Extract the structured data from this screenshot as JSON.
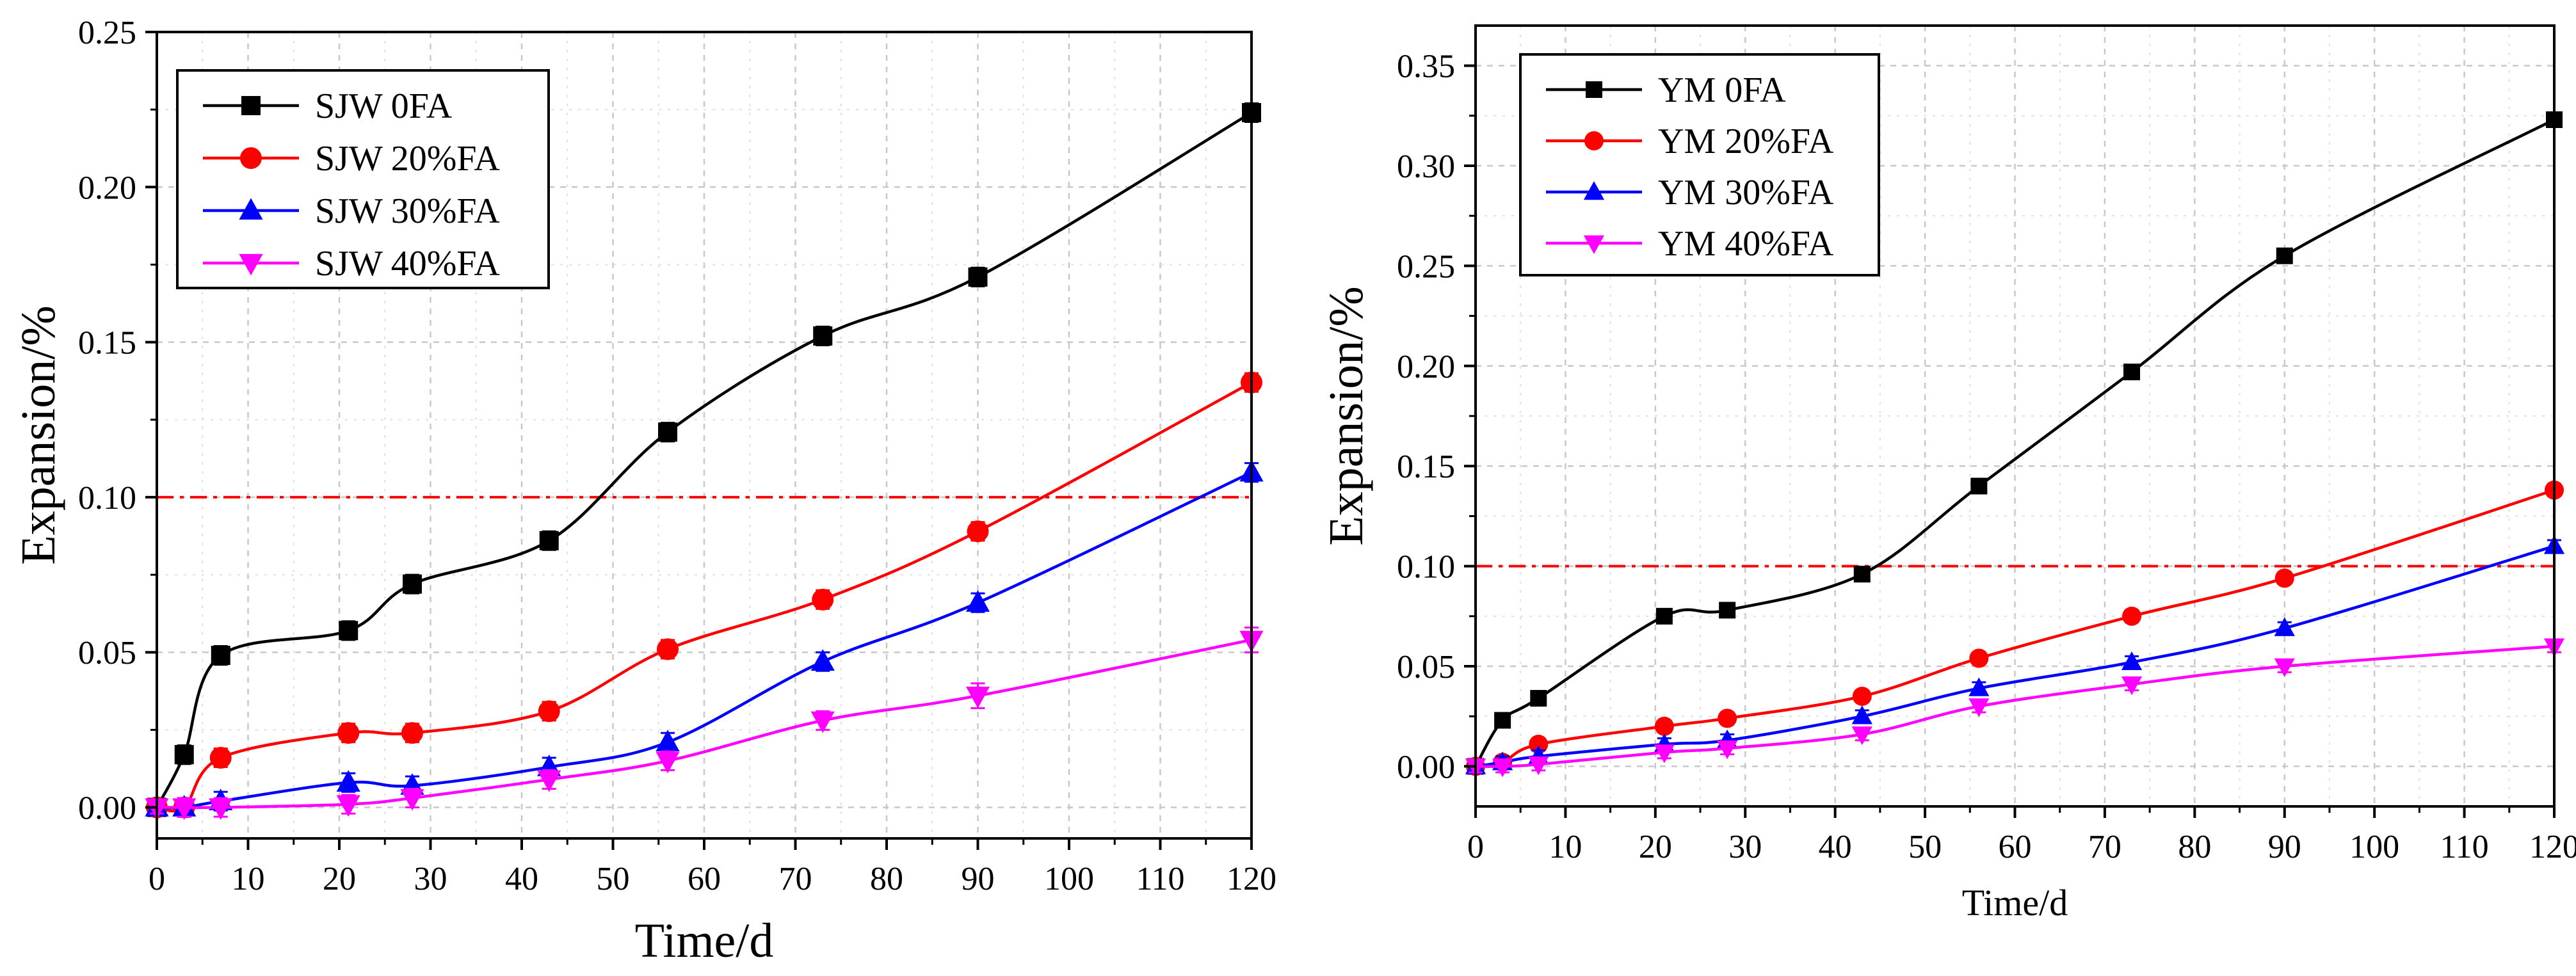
{
  "chart_data": [
    {
      "type": "line",
      "xlabel": "Time/d",
      "ylabel": "Expansion/%",
      "xlim": [
        0,
        120
      ],
      "ylim": [
        -0.01,
        0.25
      ],
      "xticks": [
        0,
        10,
        20,
        30,
        40,
        50,
        60,
        70,
        80,
        90,
        100,
        110,
        120
      ],
      "yticks": [
        "0.00",
        "0.05",
        "0.10",
        "0.15",
        "0.20",
        "0.25"
      ],
      "grid": true,
      "legend_position": "top-left",
      "threshold": 0.1,
      "series": [
        {
          "name": "SJW 0FA",
          "color": "#000000",
          "marker": "square",
          "x": [
            0,
            3,
            7,
            21,
            28,
            43,
            56,
            73,
            90,
            120
          ],
          "y": [
            0.0,
            0.017,
            0.049,
            0.057,
            0.072,
            0.086,
            0.121,
            0.152,
            0.171,
            0.224
          ],
          "err": [
            0.002,
            0.003,
            0.003,
            0.003,
            0.003,
            0.003,
            0.003,
            0.003,
            0.003,
            0.003
          ]
        },
        {
          "name": "SJW 20%FA",
          "color": "#ff0000",
          "marker": "circle",
          "x": [
            0,
            3,
            7,
            21,
            28,
            43,
            56,
            73,
            90,
            120
          ],
          "y": [
            0.0,
            0.0,
            0.016,
            0.024,
            0.024,
            0.031,
            0.051,
            0.067,
            0.089,
            0.137
          ],
          "err": [
            0.002,
            0.003,
            0.003,
            0.003,
            0.003,
            0.003,
            0.003,
            0.003,
            0.003,
            0.003
          ]
        },
        {
          "name": "SJW 30%FA",
          "color": "#0000ff",
          "marker": "triangle-up",
          "x": [
            0,
            3,
            7,
            21,
            28,
            43,
            56,
            73,
            90,
            120
          ],
          "y": [
            0.0,
            0.0,
            0.002,
            0.008,
            0.007,
            0.013,
            0.021,
            0.047,
            0.066,
            0.108
          ],
          "err": [
            0.002,
            0.003,
            0.003,
            0.003,
            0.003,
            0.003,
            0.003,
            0.003,
            0.003,
            0.003
          ]
        },
        {
          "name": "SJW 40%FA",
          "color": "#ff00ff",
          "marker": "triangle-down",
          "x": [
            0,
            3,
            7,
            21,
            28,
            43,
            56,
            73,
            90,
            120
          ],
          "y": [
            0.0,
            0.0,
            0.0,
            0.001,
            0.003,
            0.009,
            0.015,
            0.028,
            0.036,
            0.054
          ],
          "err": [
            0.002,
            0.003,
            0.003,
            0.003,
            0.003,
            0.003,
            0.003,
            0.003,
            0.004,
            0.004
          ]
        }
      ]
    },
    {
      "type": "line",
      "xlabel": "Time/d",
      "ylabel": "Expansion/%",
      "xlim": [
        0,
        120
      ],
      "ylim": [
        -0.02,
        0.37
      ],
      "xticks": [
        0,
        10,
        20,
        30,
        40,
        50,
        60,
        70,
        80,
        90,
        100,
        110,
        120
      ],
      "yticks": [
        "0.00",
        "0.05",
        "0.10",
        "0.15",
        "0.20",
        "0.25",
        "0.30",
        "0.35"
      ],
      "grid": true,
      "legend_position": "top-left",
      "threshold": 0.1,
      "series": [
        {
          "name": "YM 0FA",
          "color": "#000000",
          "marker": "square",
          "x": [
            0,
            3,
            7,
            21,
            28,
            43,
            56,
            73,
            90,
            120
          ],
          "y": [
            0.0,
            0.023,
            0.034,
            0.075,
            0.078,
            0.096,
            0.14,
            0.197,
            0.255,
            0.323
          ],
          "err": [
            0.003,
            0.003,
            0.003,
            0.003,
            0.003,
            0.003,
            0.003,
            0.003,
            0.003,
            0.003
          ]
        },
        {
          "name": "YM 20%FA",
          "color": "#ff0000",
          "marker": "circle",
          "x": [
            0,
            3,
            7,
            21,
            28,
            43,
            56,
            73,
            90,
            120
          ],
          "y": [
            0.0,
            0.002,
            0.011,
            0.02,
            0.024,
            0.035,
            0.054,
            0.075,
            0.094,
            0.138
          ],
          "err": [
            0.003,
            0.003,
            0.003,
            0.003,
            0.003,
            0.003,
            0.003,
            0.003,
            0.003,
            0.003
          ]
        },
        {
          "name": "YM 30%FA",
          "color": "#0000ff",
          "marker": "triangle-up",
          "x": [
            0,
            3,
            7,
            21,
            28,
            43,
            56,
            73,
            90,
            120
          ],
          "y": [
            0.0,
            0.002,
            0.005,
            0.011,
            0.013,
            0.025,
            0.039,
            0.052,
            0.069,
            0.11
          ],
          "err": [
            0.003,
            0.003,
            0.003,
            0.003,
            0.003,
            0.003,
            0.003,
            0.003,
            0.003,
            0.003
          ]
        },
        {
          "name": "YM 40%FA",
          "color": "#ff00ff",
          "marker": "triangle-down",
          "x": [
            0,
            3,
            7,
            21,
            28,
            43,
            56,
            73,
            90,
            120
          ],
          "y": [
            0.0,
            0.0,
            0.001,
            0.007,
            0.009,
            0.016,
            0.03,
            0.041,
            0.05,
            0.06
          ],
          "err": [
            0.003,
            0.003,
            0.003,
            0.003,
            0.003,
            0.003,
            0.003,
            0.003,
            0.003,
            0.003
          ]
        }
      ]
    }
  ]
}
